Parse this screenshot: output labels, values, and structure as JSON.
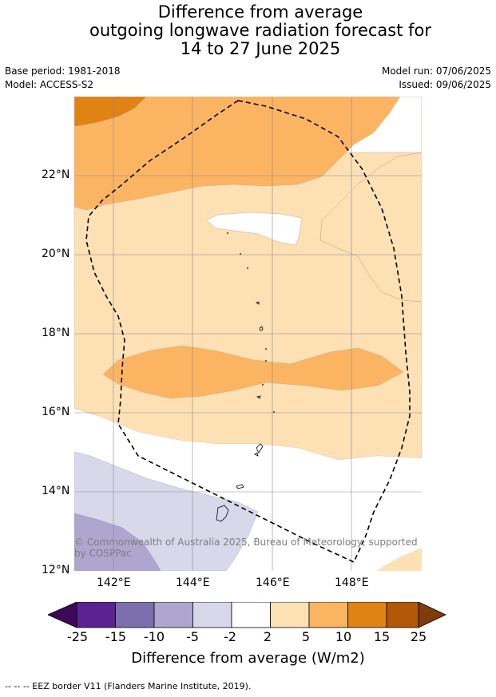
{
  "title": {
    "line1": "Difference from average",
    "line2": "outgoing longwave radiation forecast for",
    "line3": "14 to 27 June 2025"
  },
  "meta": {
    "base_period": "Base period: 1981-2018",
    "model": "Model: ACCESS-S2",
    "model_run": "Model run: 07/06/2025",
    "issued": "Issued: 09/06/2025"
  },
  "axes": {
    "lat_labels": [
      "22°N",
      "20°N",
      "18°N",
      "16°N",
      "14°N",
      "12°N"
    ],
    "lon_labels": [
      "142°E",
      "144°E",
      "146°E",
      "148°E"
    ]
  },
  "copyright": "© Commonwealth of Australia 2025, Bureau of Meteorology, supported by COSPPac",
  "colorbar": {
    "labels": [
      "-25",
      "-15",
      "-10",
      "-5",
      "-2",
      "2",
      "5",
      "10",
      "15",
      "25"
    ],
    "colors": [
      "#3d0a5b",
      "#5a2390",
      "#7c6fae",
      "#aea6cf",
      "#d8d8ea",
      "#ffffff",
      "#fde0b4",
      "#fbb562",
      "#e08214",
      "#b35806",
      "#7f3b08"
    ],
    "title": "Difference from average (W/m2)"
  },
  "footer": "--  --  -- EEZ border V11 (Flanders Marine Institute, 2019)."
}
